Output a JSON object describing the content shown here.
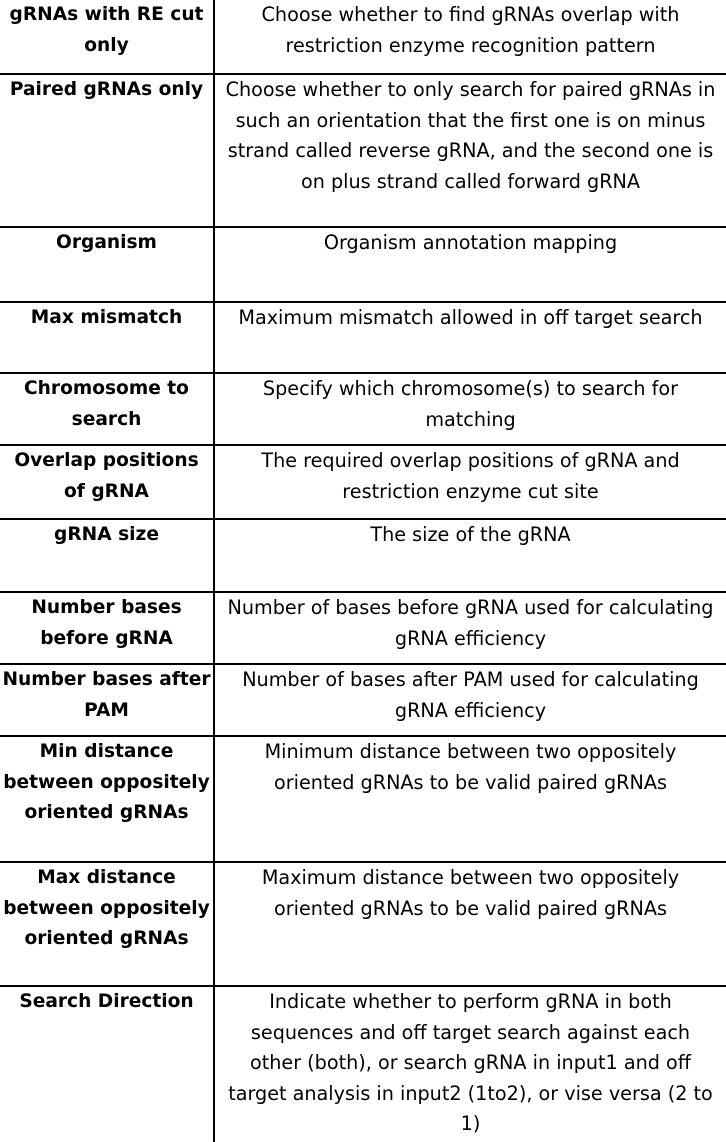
{
  "rows": [
    {
      "parameter": "gRNAs with RE cut only",
      "description": "Choose whether to find gRNAs overlap with restriction enzyme recognition pattern"
    },
    {
      "parameter": "Paired gRNAs only",
      "description": "Choose whether to only search for paired gRNAs in such an orientation that the first one is on minus strand called reverse gRNA, and the second one is on plus strand called forward gRNA"
    },
    {
      "parameter": "Organism",
      "description": "Organism annotation mapping"
    },
    {
      "parameter": "Max mismatch",
      "description": "Maximum mismatch allowed in off target search"
    },
    {
      "parameter": "Chromosome to search",
      "description": "Specify which chromosome(s) to search for matching"
    },
    {
      "parameter": "Overlap positions of gRNA",
      "description": "The required overlap positions of gRNA and restriction enzyme cut site"
    },
    {
      "parameter": "gRNA size",
      "description": "The size of the gRNA"
    },
    {
      "parameter": "Number bases before gRNA",
      "description": "Number of bases before gRNA used for calculating gRNA efficiency"
    },
    {
      "parameter": "Number bases after PAM",
      "description": "Number of bases after PAM used for calculating gRNA efficiency"
    },
    {
      "parameter": "Min distance between oppositely oriented gRNAs",
      "description": "Minimum distance between two oppositely oriented gRNAs to be valid paired gRNAs"
    },
    {
      "parameter": "Max distance between oppositely oriented gRNAs",
      "description": "Maximum distance between two oppositely oriented gRNAs to be valid paired gRNAs"
    },
    {
      "parameter": "Search Direction",
      "description": "Indicate whether to perform gRNA in both sequences and off target search against each other (both), or search gRNA in input1 and off target analysis in input2 (1to2), or vise versa (2 to 1)"
    }
  ]
}
